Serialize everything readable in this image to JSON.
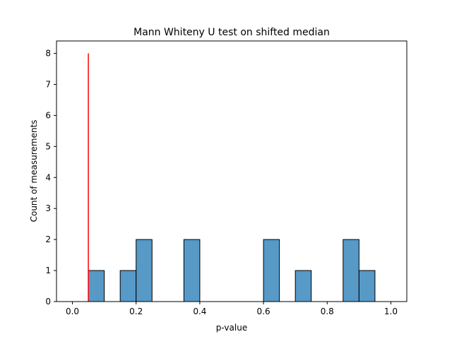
{
  "chart_data": {
    "type": "bar",
    "title": "Mann Whiteny U test on shifted median",
    "xlabel": "p-value",
    "ylabel": "Count of measurements",
    "xlim": [
      -0.05,
      1.05
    ],
    "ylim": [
      0,
      8.4
    ],
    "xticks": [
      0.0,
      0.2,
      0.4,
      0.6,
      0.8,
      1.0
    ],
    "xtick_labels": [
      "0.0",
      "0.2",
      "0.4",
      "0.6",
      "0.8",
      "1.0"
    ],
    "yticks": [
      0,
      1,
      2,
      3,
      4,
      5,
      6,
      7,
      8
    ],
    "ytick_labels": [
      "0",
      "1",
      "2",
      "3",
      "4",
      "5",
      "6",
      "7",
      "8"
    ],
    "bin_width": 0.05,
    "bins": [
      {
        "x0": 0.05,
        "x1": 0.1,
        "count": 1
      },
      {
        "x0": 0.15,
        "x1": 0.2,
        "count": 1
      },
      {
        "x0": 0.2,
        "x1": 0.25,
        "count": 2
      },
      {
        "x0": 0.35,
        "x1": 0.4,
        "count": 2
      },
      {
        "x0": 0.6,
        "x1": 0.65,
        "count": 2
      },
      {
        "x0": 0.7,
        "x1": 0.75,
        "count": 1
      },
      {
        "x0": 0.85,
        "x1": 0.9,
        "count": 2
      },
      {
        "x0": 0.9,
        "x1": 0.95,
        "count": 1
      }
    ],
    "threshold_line": {
      "x": 0.05,
      "y_from": 0,
      "y_to": 8,
      "color": "#ff0000"
    },
    "bar_color": "#5799c7",
    "bar_edge_color": "#000000",
    "grid": false,
    "legend": "none"
  }
}
